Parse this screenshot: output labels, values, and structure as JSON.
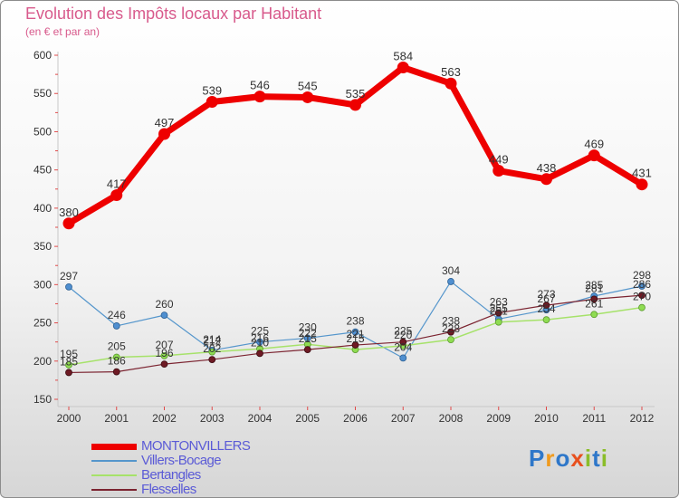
{
  "title": "Evolution des Impôts locaux par Habitant",
  "subtitle": "(en € et par an)",
  "brand": "Proxiti",
  "brand_letters": [
    {
      "char": "P",
      "color": "#2e77c9"
    },
    {
      "char": "r",
      "color": "#f09a1d"
    },
    {
      "char": "o",
      "color": "#2e77c9"
    },
    {
      "char": "x",
      "color": "#e8501e"
    },
    {
      "char": "i",
      "color": "#8bbd2a"
    },
    {
      "char": "t",
      "color": "#2e77c9"
    },
    {
      "char": "i",
      "color": "#8bbd2a"
    }
  ],
  "chart_data": {
    "type": "line",
    "title": "Evolution des Impôts locaux par Habitant",
    "subtitle": "(en € et par an)",
    "x": [
      "2000",
      "2001",
      "2002",
      "2003",
      "2004",
      "2005",
      "2006",
      "2007",
      "2008",
      "2009",
      "2010",
      "2011",
      "2012"
    ],
    "ylim": [
      150,
      600
    ],
    "yticks": [
      150,
      200,
      250,
      300,
      350,
      400,
      450,
      500,
      550,
      600
    ],
    "grid": false,
    "legend": "bottom-left",
    "series": [
      {
        "name": "MONTONVILLERS",
        "color": "#ee0000",
        "values": [
          380,
          417,
          497,
          539,
          546,
          545,
          535,
          584,
          563,
          449,
          438,
          469,
          431
        ]
      },
      {
        "name": "Villers-Bocage",
        "color": "#5596cc",
        "values": [
          297,
          246,
          260,
          214,
          225,
          230,
          238,
          204,
          304,
          255,
          267,
          285,
          298
        ]
      },
      {
        "name": "Bertangles",
        "color": "#a6e26a",
        "values": [
          195,
          205,
          207,
          212,
          216,
          222,
          215,
          220,
          228,
          251,
          254,
          261,
          270
        ]
      },
      {
        "name": "Flesselles",
        "color": "#7b2330",
        "values": [
          185,
          186,
          196,
          202,
          210,
          215,
          221,
          225,
          238,
          263,
          273,
          281,
          286
        ]
      }
    ]
  }
}
